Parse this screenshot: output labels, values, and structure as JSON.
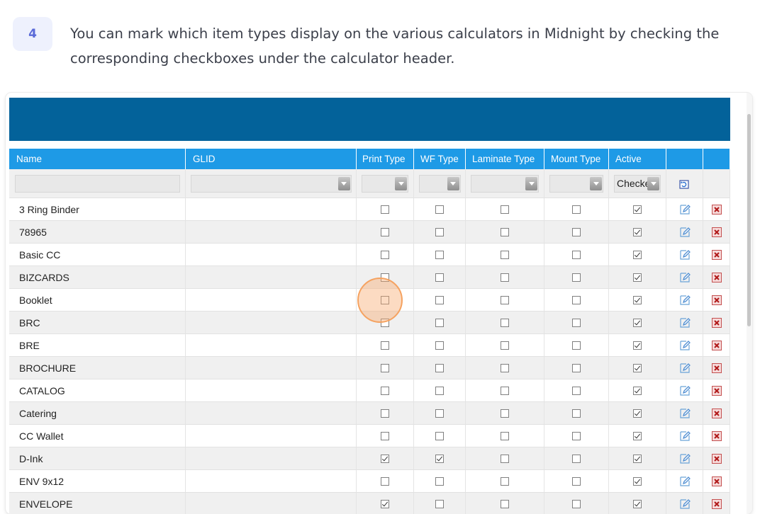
{
  "step": {
    "number": "4",
    "text": "You can mark which item types display on the various calculators in Midnight by checking the corresponding checkboxes under the calculator header."
  },
  "table": {
    "columns": [
      "Name",
      "GLID",
      "Print Type",
      "WF Type",
      "Laminate Type",
      "Mount Type",
      "Active",
      "",
      ""
    ],
    "active_filter": "Checked",
    "rows": [
      {
        "name": "3 Ring Binder",
        "print": false,
        "wf": false,
        "lam": false,
        "mount": false,
        "active": true
      },
      {
        "name": "78965",
        "print": false,
        "wf": false,
        "lam": false,
        "mount": false,
        "active": true
      },
      {
        "name": "Basic CC",
        "print": false,
        "wf": false,
        "lam": false,
        "mount": false,
        "active": true
      },
      {
        "name": "BIZCARDS",
        "print": false,
        "wf": false,
        "lam": false,
        "mount": false,
        "active": true
      },
      {
        "name": "Booklet",
        "print": false,
        "wf": false,
        "lam": false,
        "mount": false,
        "active": true
      },
      {
        "name": "BRC",
        "print": false,
        "wf": false,
        "lam": false,
        "mount": false,
        "active": true
      },
      {
        "name": "BRE",
        "print": false,
        "wf": false,
        "lam": false,
        "mount": false,
        "active": true
      },
      {
        "name": "BROCHURE",
        "print": false,
        "wf": false,
        "lam": false,
        "mount": false,
        "active": true
      },
      {
        "name": "CATALOG",
        "print": false,
        "wf": false,
        "lam": false,
        "mount": false,
        "active": true
      },
      {
        "name": "Catering",
        "print": false,
        "wf": false,
        "lam": false,
        "mount": false,
        "active": true
      },
      {
        "name": "CC Wallet",
        "print": false,
        "wf": false,
        "lam": false,
        "mount": false,
        "active": true
      },
      {
        "name": "D-Ink",
        "print": true,
        "wf": true,
        "lam": false,
        "mount": false,
        "active": true
      },
      {
        "name": "ENV 9x12",
        "print": false,
        "wf": false,
        "lam": false,
        "mount": false,
        "active": true
      },
      {
        "name": "ENVELOPE",
        "print": true,
        "wf": false,
        "lam": false,
        "mount": false,
        "active": true
      }
    ]
  },
  "icons": {
    "edit": "edit-pencil-icon",
    "delete": "delete-x-icon",
    "refresh": "refresh-icon",
    "dropdown": "chevron-down-icon"
  },
  "colors": {
    "banner": "#03629a",
    "header": "#1e9ae6",
    "highlight": "#f5a260",
    "badge_bg": "#eef1fd",
    "badge_text": "#5a6ad8"
  }
}
